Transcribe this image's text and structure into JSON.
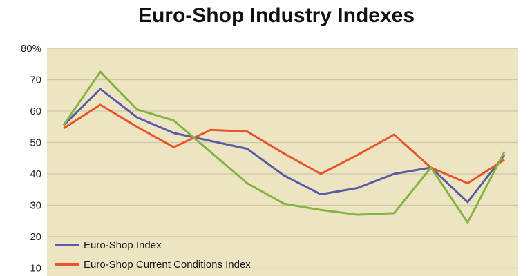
{
  "chart_data": {
    "type": "line",
    "title": "Euro-Shop Industry Indexes",
    "xlabel": "",
    "ylabel": "",
    "ylim": [
      0,
      80
    ],
    "yticks": [
      {
        "value": 80,
        "label": "80%"
      },
      {
        "value": 70,
        "label": "70"
      },
      {
        "value": 60,
        "label": "60"
      },
      {
        "value": 50,
        "label": "50"
      },
      {
        "value": 40,
        "label": "40"
      },
      {
        "value": 30,
        "label": "30"
      },
      {
        "value": 20,
        "label": "20"
      },
      {
        "value": 10,
        "label": "10"
      }
    ],
    "grid": true,
    "plot_background": "#ede5c2",
    "grid_color": "#cfc8a8",
    "legend_position": "bottom-left",
    "series": [
      {
        "name": "Euro-Shop Index",
        "color": "#5a5ba8",
        "values": [
          55.5,
          67,
          58,
          53,
          50.5,
          48,
          39.5,
          33.5,
          35.5,
          40,
          42,
          31,
          46
        ]
      },
      {
        "name": "Euro-Shop Current Conditions Index",
        "color": "#e8542a",
        "values": [
          54.5,
          62,
          55,
          48.5,
          54,
          53.5,
          46.5,
          40,
          46,
          52.5,
          42,
          37,
          44.5
        ]
      },
      {
        "name": "",
        "color": "#86b340",
        "values": [
          55.5,
          72.5,
          60.5,
          57,
          47,
          37,
          30.5,
          28.5,
          27,
          27.5,
          42,
          24.5,
          47
        ]
      }
    ]
  }
}
